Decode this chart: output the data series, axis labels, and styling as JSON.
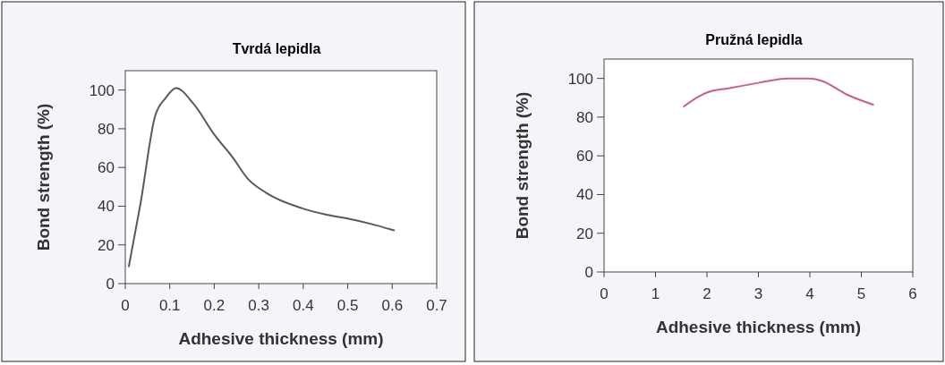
{
  "chart_data": [
    {
      "type": "line",
      "title": "Tvrdá lepidla",
      "xlabel": "Adhesive thickness (mm)",
      "ylabel": "Bond strength (%)",
      "xlim": [
        0,
        0.7
      ],
      "xticks": [
        0,
        0.1,
        0.2,
        0.3,
        0.4,
        0.5,
        0.6,
        0.7
      ],
      "ylim": [
        0,
        110
      ],
      "yticks": [
        0,
        20,
        40,
        60,
        80,
        100
      ],
      "grid": false,
      "series": [
        {
          "color": "#4f5d5c",
          "x": [
            0.008,
            0.034,
            0.067,
            0.091,
            0.114,
            0.154,
            0.2,
            0.242,
            0.276,
            0.316,
            0.396,
            0.45,
            0.497,
            0.551,
            0.604
          ],
          "values": [
            8.9,
            41,
            86.5,
            96,
            101,
            92.7,
            77,
            65,
            54,
            47,
            39,
            35.7,
            33.7,
            30.9,
            27.5
          ]
        }
      ]
    },
    {
      "type": "line",
      "title": "Pružná lepidla",
      "xlabel": "Adhesive thickness (mm)",
      "ylabel": "Bond strength (%)",
      "xlim": [
        0,
        6
      ],
      "xticks": [
        0,
        1,
        2,
        3,
        4,
        5,
        6
      ],
      "ylim": [
        0,
        110
      ],
      "yticks": [
        0,
        20,
        40,
        60,
        80,
        100
      ],
      "grid": false,
      "series": [
        {
          "color": "#c9607f",
          "x": [
            1.55,
            1.84,
            2.01,
            2.42,
            3.0,
            3.58,
            3.98,
            4.21,
            4.74,
            5.23
          ],
          "values": [
            85.5,
            90.7,
            92.8,
            94.9,
            97.7,
            100,
            100,
            98.9,
            91.4,
            86.4
          ]
        }
      ]
    }
  ]
}
